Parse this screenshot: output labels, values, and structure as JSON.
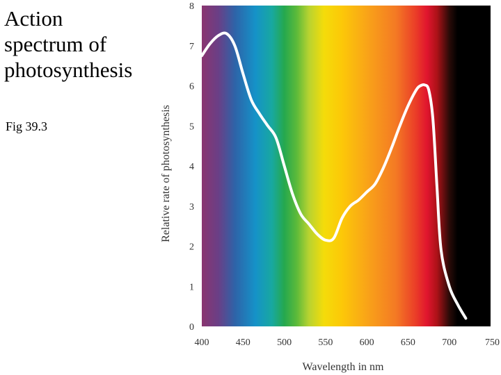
{
  "slide": {
    "title_lines": [
      "Action",
      "spectrum of",
      "photosynthesis"
    ],
    "caption": "Fig 39.3"
  },
  "chart_data": {
    "type": "line",
    "title": "Action spectrum of photosynthesis",
    "xlabel": "Wavelength in nm",
    "ylabel": "Relative rate of photosynthesis",
    "xlim": [
      400,
      750
    ],
    "ylim": [
      0,
      8
    ],
    "x_ticks": [
      400,
      450,
      500,
      550,
      600,
      650,
      700,
      750
    ],
    "y_ticks": [
      0,
      1,
      2,
      3,
      4,
      5,
      6,
      7,
      8
    ],
    "grid": false,
    "background": "visible light spectrum (violet, blue, green, yellow, orange, red, black)",
    "spectrum_colors": [
      {
        "nm": 400,
        "color": "#8a3570"
      },
      {
        "nm": 420,
        "color": "#6a3f86"
      },
      {
        "nm": 440,
        "color": "#2e63a8"
      },
      {
        "nm": 465,
        "color": "#1592c8"
      },
      {
        "nm": 485,
        "color": "#18a8a0"
      },
      {
        "nm": 500,
        "color": "#25a84e"
      },
      {
        "nm": 515,
        "color": "#5cba3a"
      },
      {
        "nm": 530,
        "color": "#b8d330"
      },
      {
        "nm": 548,
        "color": "#f4dc0a"
      },
      {
        "nm": 570,
        "color": "#fcc808"
      },
      {
        "nm": 600,
        "color": "#f9a418"
      },
      {
        "nm": 635,
        "color": "#f47a24"
      },
      {
        "nm": 660,
        "color": "#ea3b28"
      },
      {
        "nm": 673,
        "color": "#e0152e"
      },
      {
        "nm": 685,
        "color": "#ad1218"
      },
      {
        "nm": 700,
        "color": "#2a0b08"
      },
      {
        "nm": 710,
        "color": "#000000"
      },
      {
        "nm": 750,
        "color": "#000000"
      }
    ],
    "curve_color": "#ffffff",
    "series": [
      {
        "name": "Relative rate of photosynthesis",
        "x": [
          400,
          410,
          420,
          430,
          440,
          450,
          460,
          470,
          480,
          490,
          500,
          510,
          520,
          530,
          540,
          550,
          560,
          570,
          580,
          590,
          600,
          610,
          620,
          630,
          640,
          650,
          660,
          665,
          670,
          675,
          680,
          685,
          690,
          700,
          710,
          720
        ],
        "y": [
          6.75,
          7.05,
          7.25,
          7.3,
          7.0,
          6.3,
          5.65,
          5.3,
          5.0,
          4.7,
          4.0,
          3.3,
          2.8,
          2.55,
          2.3,
          2.15,
          2.2,
          2.7,
          3.0,
          3.15,
          3.35,
          3.55,
          3.95,
          4.45,
          5.0,
          5.5,
          5.9,
          6.0,
          6.02,
          5.9,
          5.2,
          3.5,
          1.9,
          1.0,
          0.55,
          0.2
        ]
      }
    ]
  }
}
